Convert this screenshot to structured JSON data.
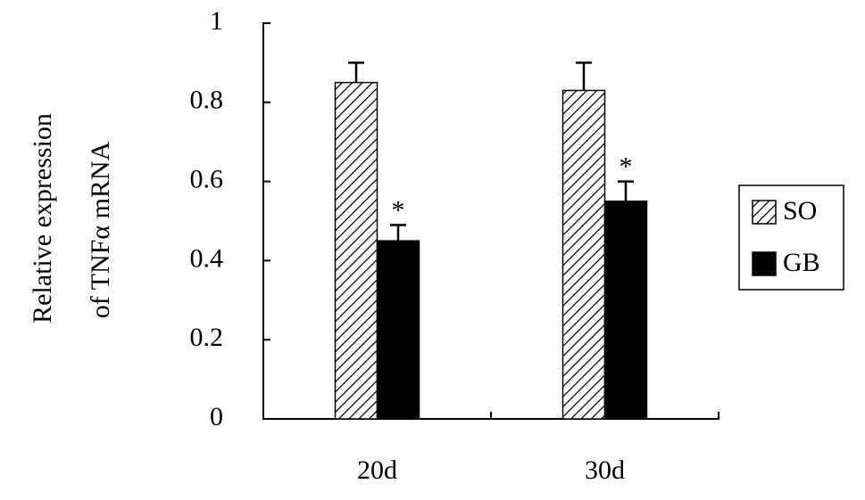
{
  "chart_data": {
    "type": "bar",
    "ylabel": [
      "Relative expression",
      "of TNFα mRNA"
    ],
    "categories": [
      "20d",
      "30d"
    ],
    "series": [
      {
        "name": "SO",
        "color": "#000000",
        "pattern": "hatch",
        "values": [
          0.85,
          0.83
        ],
        "errors": [
          0.05,
          0.07
        ]
      },
      {
        "name": "GB",
        "color": "#000000",
        "pattern": "solid",
        "values": [
          0.45,
          0.55
        ],
        "errors": [
          0.04,
          0.05
        ]
      }
    ],
    "annotations": [
      "*",
      "*"
    ],
    "ylim": [
      0,
      1
    ],
    "yticks": [
      0,
      0.2,
      0.4,
      0.6,
      0.8,
      1
    ],
    "grid": false,
    "legend": "right"
  }
}
